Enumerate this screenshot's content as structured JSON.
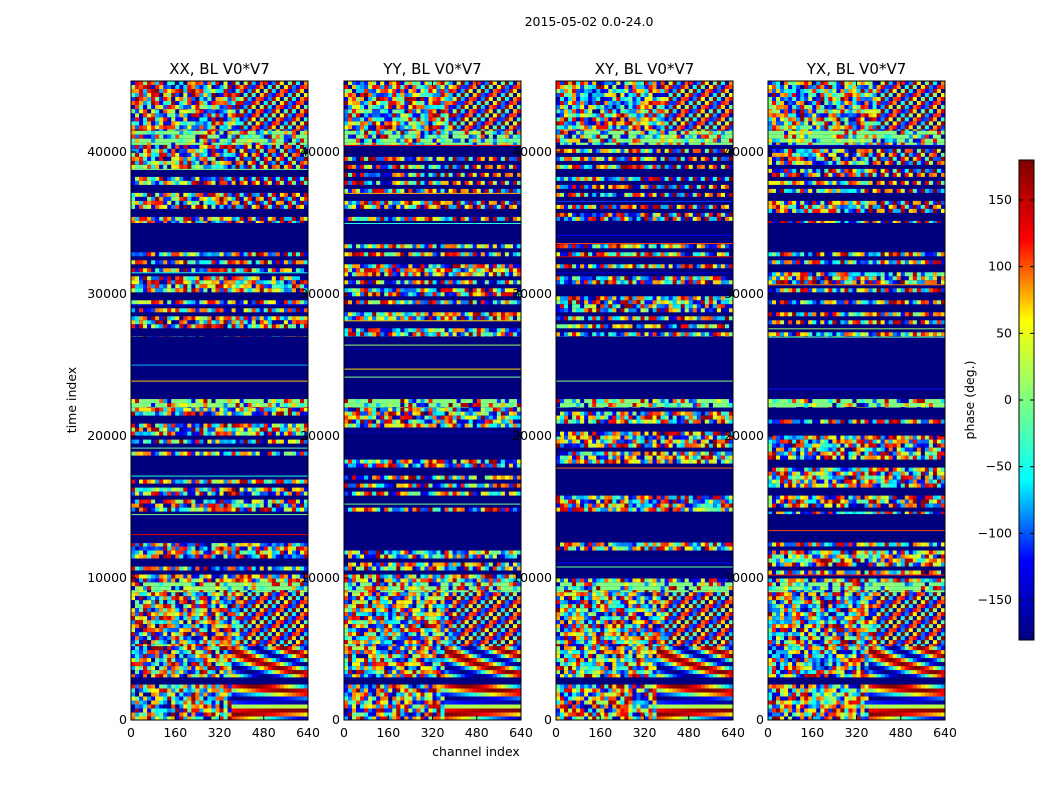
{
  "chart_data": {
    "type": "heatmap",
    "suptitle": "2015-05-02 0.0-24.0",
    "xlabel": "channel index",
    "ylabel": "time index",
    "xlim": [
      0,
      640
    ],
    "ylim": [
      0,
      45000
    ],
    "xticks": [
      0,
      160,
      320,
      480,
      640
    ],
    "yticks": [
      0,
      10000,
      20000,
      30000,
      40000
    ],
    "panels": [
      {
        "title": "XX, BL V0*V7"
      },
      {
        "title": "YY, BL V0*V7"
      },
      {
        "title": "XY, BL V0*V7"
      },
      {
        "title": "YX, BL V0*V7"
      }
    ],
    "colorbar": {
      "label": "phase (deg.)",
      "range": [
        -180,
        180
      ],
      "ticks": [
        -150,
        -100,
        -50,
        0,
        50,
        100,
        150
      ],
      "tick_labels": [
        "−150",
        "−100",
        "−50",
        "0",
        "50",
        "100",
        "150"
      ],
      "colormap": "jet",
      "stops": [
        "#00007f",
        "#0000ff",
        "#00ffff",
        "#80ff80",
        "#ffff00",
        "#ff0000",
        "#7f0000"
      ]
    },
    "time_bands": [
      {
        "from": 0,
        "to": 2500,
        "kind": "fringe"
      },
      {
        "from": 2500,
        "to": 3000,
        "kind": "flag"
      },
      {
        "from": 3000,
        "to": 5200,
        "kind": "fringe"
      },
      {
        "from": 5200,
        "to": 9000,
        "kind": "noise"
      },
      {
        "from": 9000,
        "to": 9700,
        "kind": "mixed"
      },
      {
        "from": 9700,
        "to": 12500,
        "kind": "striped"
      },
      {
        "from": 12500,
        "to": 14500,
        "kind": "flag"
      },
      {
        "from": 14500,
        "to": 22000,
        "kind": "striped"
      },
      {
        "from": 22000,
        "to": 22600,
        "kind": "mixed"
      },
      {
        "from": 22600,
        "to": 27000,
        "kind": "flag"
      },
      {
        "from": 27000,
        "to": 33500,
        "kind": "striped"
      },
      {
        "from": 33500,
        "to": 35000,
        "kind": "flag"
      },
      {
        "from": 35000,
        "to": 40500,
        "kind": "flag-fringe"
      },
      {
        "from": 40500,
        "to": 41500,
        "kind": "mixed"
      },
      {
        "from": 41500,
        "to": 43000,
        "kind": "noise"
      },
      {
        "from": 43000,
        "to": 45000,
        "kind": "noise"
      }
    ]
  }
}
